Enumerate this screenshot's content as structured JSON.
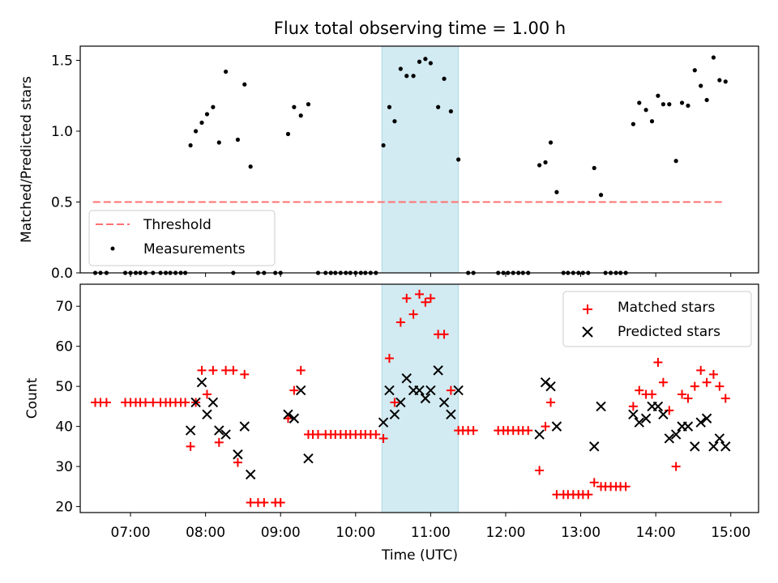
{
  "title": "Flux total observing time = 1.00 h",
  "colors": {
    "threshold": "#ff7070",
    "measurements": "#000000",
    "matched": "#ff0000",
    "predicted": "#000000",
    "highlight": "#add8e6"
  },
  "chart_data": [
    {
      "type": "scatter",
      "panel": "top",
      "ylabel": "Matched/Predicted stars",
      "ylim": [
        0,
        1.6
      ],
      "yticks": [
        "0.0",
        "0.5",
        "1.0",
        "1.5"
      ],
      "xlim": [
        6.33,
        15.37
      ],
      "xticks": [
        "07:00",
        "08:00",
        "09:00",
        "10:00",
        "11:00",
        "12:00",
        "13:00",
        "14:00",
        "15:00"
      ],
      "highlight_span": [
        10.35,
        11.37
      ],
      "legend": {
        "placement": "lower-left",
        "entries": [
          "Threshold",
          "Measurements"
        ]
      },
      "threshold": {
        "name": "Threshold",
        "value": 0.5,
        "x_range": [
          6.5,
          14.9
        ]
      },
      "series": [
        {
          "name": "Measurements",
          "points": [
            [
              6.53,
              0
            ],
            [
              6.6,
              0
            ],
            [
              6.68,
              0
            ],
            [
              6.93,
              0
            ],
            [
              7.0,
              0
            ],
            [
              7.07,
              0
            ],
            [
              7.13,
              0
            ],
            [
              7.2,
              0
            ],
            [
              7.3,
              0
            ],
            [
              7.4,
              0
            ],
            [
              7.47,
              0
            ],
            [
              7.53,
              0
            ],
            [
              7.6,
              0
            ],
            [
              7.67,
              0
            ],
            [
              7.73,
              0
            ],
            [
              7.8,
              0.9
            ],
            [
              7.87,
              1.0
            ],
            [
              7.95,
              1.06
            ],
            [
              8.02,
              1.12
            ],
            [
              8.1,
              1.17
            ],
            [
              8.18,
              0.92
            ],
            [
              8.27,
              1.42
            ],
            [
              8.37,
              0
            ],
            [
              8.43,
              0.94
            ],
            [
              8.52,
              1.33
            ],
            [
              8.6,
              0.75
            ],
            [
              8.7,
              0
            ],
            [
              8.78,
              0
            ],
            [
              8.93,
              0
            ],
            [
              9.0,
              0
            ],
            [
              9.1,
              0.98
            ],
            [
              9.18,
              1.17
            ],
            [
              9.27,
              1.11
            ],
            [
              9.37,
              1.19
            ],
            [
              9.5,
              0
            ],
            [
              9.6,
              0
            ],
            [
              9.67,
              0
            ],
            [
              9.73,
              0
            ],
            [
              9.8,
              0
            ],
            [
              9.87,
              0
            ],
            [
              9.93,
              0
            ],
            [
              10.0,
              0
            ],
            [
              10.07,
              0
            ],
            [
              10.13,
              0
            ],
            [
              10.2,
              0
            ],
            [
              10.27,
              0
            ],
            [
              10.37,
              0.9
            ],
            [
              10.45,
              1.17
            ],
            [
              10.52,
              1.07
            ],
            [
              10.6,
              1.44
            ],
            [
              10.68,
              1.39
            ],
            [
              10.77,
              1.39
            ],
            [
              10.85,
              1.49
            ],
            [
              10.93,
              1.51
            ],
            [
              11.0,
              1.48
            ],
            [
              11.1,
              1.17
            ],
            [
              11.18,
              1.37
            ],
            [
              11.27,
              1.14
            ],
            [
              11.37,
              0.8
            ],
            [
              11.5,
              0
            ],
            [
              11.57,
              0
            ],
            [
              11.9,
              0
            ],
            [
              11.97,
              0
            ],
            [
              12.03,
              0
            ],
            [
              12.1,
              0
            ],
            [
              12.17,
              0
            ],
            [
              12.23,
              0
            ],
            [
              12.3,
              0
            ],
            [
              12.45,
              0.76
            ],
            [
              12.53,
              0.78
            ],
            [
              12.6,
              0.92
            ],
            [
              12.68,
              0.57
            ],
            [
              12.77,
              0
            ],
            [
              12.83,
              0
            ],
            [
              12.9,
              0
            ],
            [
              12.97,
              0
            ],
            [
              13.03,
              0
            ],
            [
              13.1,
              0
            ],
            [
              13.18,
              0.74
            ],
            [
              13.27,
              0.55
            ],
            [
              13.33,
              0
            ],
            [
              13.4,
              0
            ],
            [
              13.47,
              0
            ],
            [
              13.53,
              0
            ],
            [
              13.6,
              0
            ],
            [
              13.7,
              1.05
            ],
            [
              13.78,
              1.2
            ],
            [
              13.87,
              1.15
            ],
            [
              13.95,
              1.07
            ],
            [
              14.03,
              1.25
            ],
            [
              14.1,
              1.19
            ],
            [
              14.18,
              1.19
            ],
            [
              14.27,
              0.79
            ],
            [
              14.35,
              1.2
            ],
            [
              14.43,
              1.18
            ],
            [
              14.52,
              1.43
            ],
            [
              14.6,
              1.32
            ],
            [
              14.68,
              1.22
            ],
            [
              14.77,
              1.52
            ],
            [
              14.85,
              1.36
            ],
            [
              14.93,
              1.35
            ]
          ]
        }
      ]
    },
    {
      "type": "scatter",
      "panel": "bottom",
      "xlabel": "Time (UTC)",
      "ylabel": "Count",
      "ylim": [
        18.5,
        75.5
      ],
      "yticks": [
        "20",
        "30",
        "40",
        "50",
        "60",
        "70"
      ],
      "xlim": [
        6.33,
        15.37
      ],
      "xticks": [
        "07:00",
        "08:00",
        "09:00",
        "10:00",
        "11:00",
        "12:00",
        "13:00",
        "14:00",
        "15:00"
      ],
      "highlight_span": [
        10.35,
        11.37
      ],
      "legend": {
        "placement": "top-right",
        "entries": [
          "Matched stars",
          "Predicted stars"
        ]
      },
      "series": [
        {
          "name": "Matched stars",
          "marker": "plus",
          "points": [
            [
              6.53,
              46
            ],
            [
              6.6,
              46
            ],
            [
              6.68,
              46
            ],
            [
              6.93,
              46
            ],
            [
              7.0,
              46
            ],
            [
              7.07,
              46
            ],
            [
              7.13,
              46
            ],
            [
              7.2,
              46
            ],
            [
              7.3,
              46
            ],
            [
              7.4,
              46
            ],
            [
              7.47,
              46
            ],
            [
              7.53,
              46
            ],
            [
              7.6,
              46
            ],
            [
              7.67,
              46
            ],
            [
              7.73,
              46
            ],
            [
              7.8,
              35
            ],
            [
              7.87,
              46
            ],
            [
              7.95,
              54
            ],
            [
              8.02,
              48
            ],
            [
              8.1,
              54
            ],
            [
              8.18,
              36
            ],
            [
              8.27,
              54
            ],
            [
              8.37,
              54
            ],
            [
              8.43,
              31
            ],
            [
              8.52,
              53
            ],
            [
              8.6,
              21
            ],
            [
              8.7,
              21
            ],
            [
              8.78,
              21
            ],
            [
              8.93,
              21
            ],
            [
              9.0,
              21
            ],
            [
              9.1,
              42
            ],
            [
              9.18,
              49
            ],
            [
              9.27,
              54
            ],
            [
              9.37,
              38
            ],
            [
              9.43,
              38
            ],
            [
              9.5,
              38
            ],
            [
              9.6,
              38
            ],
            [
              9.67,
              38
            ],
            [
              9.73,
              38
            ],
            [
              9.8,
              38
            ],
            [
              9.87,
              38
            ],
            [
              9.93,
              38
            ],
            [
              10.0,
              38
            ],
            [
              10.07,
              38
            ],
            [
              10.13,
              38
            ],
            [
              10.2,
              38
            ],
            [
              10.27,
              38
            ],
            [
              10.37,
              37
            ],
            [
              10.45,
              57
            ],
            [
              10.52,
              46
            ],
            [
              10.6,
              66
            ],
            [
              10.68,
              72
            ],
            [
              10.77,
              68
            ],
            [
              10.85,
              73
            ],
            [
              10.93,
              71
            ],
            [
              11.0,
              72
            ],
            [
              11.1,
              63
            ],
            [
              11.18,
              63
            ],
            [
              11.27,
              49
            ],
            [
              11.37,
              39
            ],
            [
              11.43,
              39
            ],
            [
              11.5,
              39
            ],
            [
              11.57,
              39
            ],
            [
              11.9,
              39
            ],
            [
              11.97,
              39
            ],
            [
              12.03,
              39
            ],
            [
              12.1,
              39
            ],
            [
              12.17,
              39
            ],
            [
              12.23,
              39
            ],
            [
              12.3,
              39
            ],
            [
              12.45,
              29
            ],
            [
              12.53,
              40
            ],
            [
              12.6,
              46
            ],
            [
              12.68,
              23
            ],
            [
              12.77,
              23
            ],
            [
              12.83,
              23
            ],
            [
              12.9,
              23
            ],
            [
              12.97,
              23
            ],
            [
              13.03,
              23
            ],
            [
              13.1,
              23
            ],
            [
              13.18,
              26
            ],
            [
              13.27,
              25
            ],
            [
              13.33,
              25
            ],
            [
              13.4,
              25
            ],
            [
              13.47,
              25
            ],
            [
              13.53,
              25
            ],
            [
              13.6,
              25
            ],
            [
              13.7,
              45
            ],
            [
              13.78,
              49
            ],
            [
              13.87,
              48
            ],
            [
              13.95,
              48
            ],
            [
              14.03,
              56
            ],
            [
              14.1,
              51
            ],
            [
              14.18,
              44
            ],
            [
              14.27,
              30
            ],
            [
              14.35,
              48
            ],
            [
              14.43,
              47
            ],
            [
              14.52,
              50
            ],
            [
              14.6,
              54
            ],
            [
              14.68,
              51
            ],
            [
              14.77,
              53
            ],
            [
              14.85,
              50
            ],
            [
              14.93,
              47
            ]
          ]
        },
        {
          "name": "Predicted stars",
          "marker": "x",
          "points": [
            [
              7.8,
              39
            ],
            [
              7.87,
              46
            ],
            [
              7.95,
              51
            ],
            [
              8.02,
              43
            ],
            [
              8.1,
              46
            ],
            [
              8.18,
              39
            ],
            [
              8.27,
              38
            ],
            [
              8.43,
              33
            ],
            [
              8.52,
              40
            ],
            [
              8.6,
              28
            ],
            [
              9.1,
              43
            ],
            [
              9.18,
              42
            ],
            [
              9.27,
              49
            ],
            [
              9.37,
              32
            ],
            [
              10.37,
              41
            ],
            [
              10.45,
              49
            ],
            [
              10.52,
              43
            ],
            [
              10.6,
              46
            ],
            [
              10.68,
              52
            ],
            [
              10.77,
              49
            ],
            [
              10.85,
              49
            ],
            [
              10.93,
              47
            ],
            [
              11.0,
              49
            ],
            [
              11.1,
              54
            ],
            [
              11.18,
              46
            ],
            [
              11.27,
              43
            ],
            [
              11.37,
              49
            ],
            [
              12.45,
              38
            ],
            [
              12.53,
              51
            ],
            [
              12.6,
              50
            ],
            [
              12.68,
              40
            ],
            [
              13.18,
              35
            ],
            [
              13.27,
              45
            ],
            [
              13.7,
              43
            ],
            [
              13.78,
              41
            ],
            [
              13.87,
              42
            ],
            [
              13.95,
              45
            ],
            [
              14.03,
              45
            ],
            [
              14.1,
              43
            ],
            [
              14.18,
              37
            ],
            [
              14.27,
              38
            ],
            [
              14.35,
              40
            ],
            [
              14.43,
              40
            ],
            [
              14.52,
              35
            ],
            [
              14.6,
              41
            ],
            [
              14.68,
              42
            ],
            [
              14.77,
              35
            ],
            [
              14.85,
              37
            ],
            [
              14.93,
              35
            ]
          ]
        }
      ]
    }
  ]
}
